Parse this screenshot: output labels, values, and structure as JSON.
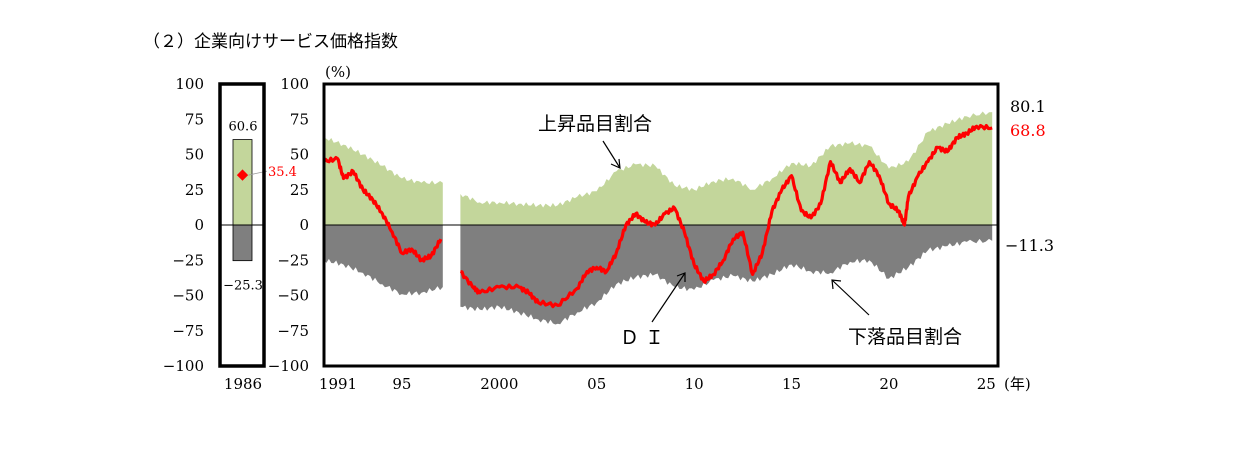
{
  "title": "（２）企業向けサービス価格指数",
  "chart_data": [
    {
      "type": "bar",
      "panel": "1986",
      "categories": [
        "1986"
      ],
      "ylim": [
        -100,
        100
      ],
      "yticks": [
        100,
        75,
        50,
        25,
        0,
        -25,
        -50,
        -75,
        -100
      ],
      "series": [
        {
          "name": "上昇品目割合",
          "values": [
            60.6
          ],
          "color": "#c3d69b"
        },
        {
          "name": "下落品目割合",
          "values": [
            -25.3
          ],
          "color": "#7f7f7f"
        },
        {
          "name": "ＤＩ",
          "values": [
            35.4
          ],
          "color": "#ff0000"
        }
      ],
      "labels": {
        "up": "60.6",
        "down": "−25.3",
        "di": "35.4"
      }
    },
    {
      "type": "area",
      "panel": "main",
      "ylabel": "(%)",
      "xunit": "(年)",
      "ylim": [
        -100,
        100
      ],
      "yticks": [
        100,
        75,
        50,
        25,
        0,
        -25,
        -50,
        -75,
        -100
      ],
      "xlim": [
        1991,
        2025.6
      ],
      "xticks": [
        {
          "v": 1991,
          "label": "1991"
        },
        {
          "v": 1995,
          "label": "95"
        },
        {
          "v": 2000,
          "label": "2000"
        },
        {
          "v": 2005,
          "label": "05"
        },
        {
          "v": 2010,
          "label": "10"
        },
        {
          "v": 2015,
          "label": "15"
        },
        {
          "v": 2020,
          "label": "20"
        },
        {
          "v": 2025,
          "label": "25"
        }
      ],
      "gap": [
        1997.2,
        1998.0
      ],
      "series": [
        {
          "name": "上昇品目割合",
          "color": "#c3d69b",
          "x": [
            1991,
            1992,
            1993,
            1994,
            1995,
            1996,
            1997.1,
            1998,
            1999,
            2000,
            2001,
            2002,
            2003,
            2004,
            2005,
            2006,
            2007,
            2008,
            2009,
            2010,
            2011,
            2012,
            2013,
            2014,
            2015,
            2016,
            2017,
            2018,
            2019,
            2020,
            2021,
            2022,
            2023,
            2024,
            2025.3
          ],
          "values": [
            62,
            57,
            50,
            42,
            33,
            30,
            30,
            22,
            16,
            16,
            15,
            14,
            14,
            20,
            24,
            38,
            43,
            42,
            28,
            25,
            31,
            33,
            25,
            33,
            44,
            42,
            56,
            58,
            56,
            40,
            45,
            66,
            72,
            77,
            80.1
          ]
        },
        {
          "name": "下落品目割合",
          "color": "#7f7f7f",
          "x": [
            1991,
            1992,
            1993,
            1994,
            1995,
            1996,
            1997.1,
            1998,
            1999,
            2000,
            2001,
            2002,
            2003,
            2004,
            2005,
            2006,
            2007,
            2008,
            2009,
            2010,
            2011,
            2012,
            2013,
            2014,
            2015,
            2016,
            2017,
            2018,
            2019,
            2020,
            2021,
            2022,
            2023,
            2024,
            2025.3
          ],
          "values": [
            -25,
            -28,
            -34,
            -42,
            -49,
            -48,
            -44,
            -58,
            -60,
            -58,
            -62,
            -67,
            -70,
            -62,
            -55,
            -42,
            -37,
            -35,
            -44,
            -46,
            -39,
            -36,
            -40,
            -35,
            -28,
            -33,
            -34,
            -26,
            -25,
            -38,
            -30,
            -18,
            -15,
            -12,
            -11.3
          ]
        },
        {
          "name": "ＤＩ",
          "color": "#ff0000",
          "x": [
            1991,
            1991.7,
            1992,
            1992.5,
            1993,
            1993.5,
            1994,
            1994.5,
            1995,
            1995.5,
            1996,
            1996.5,
            1997,
            1998,
            1998.7,
            1999,
            2000,
            2001,
            2001.5,
            2002,
            2003,
            2004,
            2004.5,
            2005,
            2005.5,
            2006,
            2006.5,
            2007,
            2007.5,
            2008,
            2008.5,
            2009,
            2009.5,
            2010,
            2010.5,
            2011,
            2011.5,
            2012,
            2012.5,
            2013,
            2013.5,
            2014,
            2014.5,
            2015,
            2015.5,
            2016,
            2016.5,
            2017,
            2017.5,
            2018,
            2018.5,
            2019,
            2019.5,
            2020,
            2020.5,
            2020.8,
            2021,
            2021.5,
            2022,
            2022.5,
            2023,
            2023.5,
            2024,
            2024.5,
            2025.3
          ],
          "values": [
            45,
            47,
            33,
            38,
            25,
            18,
            8,
            -5,
            -20,
            -17,
            -25,
            -22,
            -10,
            -33,
            -45,
            -48,
            -44,
            -44,
            -48,
            -55,
            -57,
            -45,
            -33,
            -30,
            -33,
            -20,
            0,
            8,
            2,
            0,
            8,
            12,
            -5,
            -28,
            -40,
            -35,
            -25,
            -10,
            -5,
            -35,
            -20,
            10,
            25,
            35,
            10,
            5,
            15,
            45,
            30,
            40,
            30,
            45,
            35,
            15,
            10,
            0,
            20,
            35,
            45,
            55,
            52,
            62,
            65,
            70,
            68.8
          ]
        }
      ],
      "end_labels": {
        "up": "80.1",
        "di": "68.8",
        "down": "−11.3"
      },
      "annotations": {
        "up": "上昇品目割合",
        "down": "下落品目割合",
        "di": "ＤＩ"
      }
    }
  ]
}
